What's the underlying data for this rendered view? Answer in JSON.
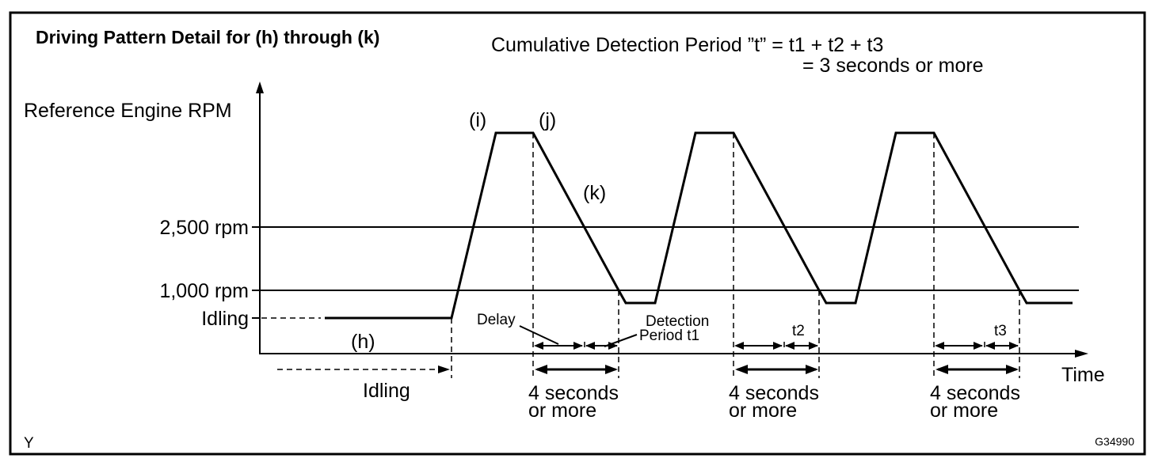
{
  "title": "Driving Pattern Detail for (h) through (k)",
  "formula": {
    "line1": "Cumulative Detection Period ”t” = t1 + t2 + t3",
    "line2": "= 3 seconds or more"
  },
  "y_axis_label": "Reference Engine RPM",
  "x_axis_label": "Time",
  "levels": {
    "rpm_2500": "2,500 rpm",
    "rpm_1000": "1,000 rpm",
    "idling": "Idling"
  },
  "steps": {
    "h": "(h)",
    "i": "(i)",
    "j": "(j)",
    "k": "(k)"
  },
  "annotations": {
    "delay": "Delay",
    "detection_line1": "Detection",
    "detection_line2": "Period t1",
    "t2": "t2",
    "t3": "t3",
    "idling_bottom": "Idling",
    "four_seconds_line1": "4 seconds",
    "four_seconds_line2": "or more"
  },
  "corner_left": "Y",
  "figure_code": "G34990"
}
